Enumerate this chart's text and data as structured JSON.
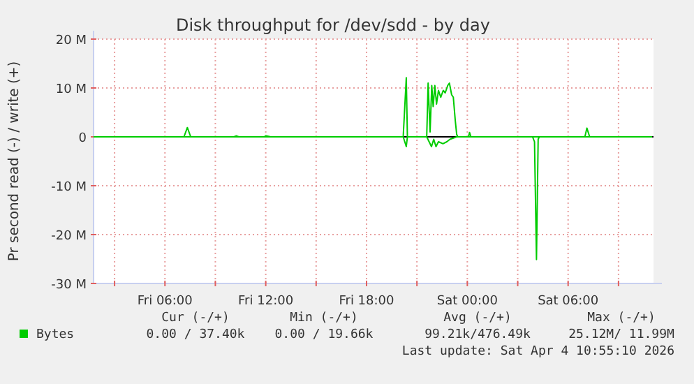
{
  "chart_data": {
    "type": "line",
    "title": "Disk throughput for /dev/sdd - by day",
    "ylabel": "Pr second read (-) / write (+)",
    "xlim": [
      "2026-04-03T01:45",
      "2026-04-04T11:05"
    ],
    "xticks": [
      {
        "value": "2026-04-03T03:00",
        "label": null
      },
      {
        "value": "2026-04-03T06:00",
        "label": "Fri 06:00"
      },
      {
        "value": "2026-04-03T09:00",
        "label": null
      },
      {
        "value": "2026-04-03T12:00",
        "label": "Fri 12:00"
      },
      {
        "value": "2026-04-03T15:00",
        "label": null
      },
      {
        "value": "2026-04-03T18:00",
        "label": "Fri 18:00"
      },
      {
        "value": "2026-04-03T21:00",
        "label": null
      },
      {
        "value": "2026-04-04T00:00",
        "label": "Sat 00:00"
      },
      {
        "value": "2026-04-04T03:00",
        "label": null
      },
      {
        "value": "2026-04-04T06:00",
        "label": "Sat 06:00"
      },
      {
        "value": "2026-04-04T09:00",
        "label": null
      }
    ],
    "ylim": [
      -30,
      20
    ],
    "yticks": [
      {
        "value": -30,
        "label": "-30 M"
      },
      {
        "value": -20,
        "label": "-20 M"
      },
      {
        "value": -10,
        "label": "-10 M"
      },
      {
        "value": 0,
        "label": "0"
      },
      {
        "value": 10,
        "label": "10 M"
      },
      {
        "value": 20,
        "label": "20 M"
      }
    ],
    "grid": true,
    "legend": "bottom",
    "line_style": "solid",
    "ref_lines": [
      {
        "axis": "y",
        "value": 0,
        "color": "#000000"
      }
    ],
    "series": [
      {
        "name": "Bytes",
        "color": "#00cc00",
        "x": [
          "2026-04-03T01:45",
          "2026-04-03T07:08",
          "2026-04-03T07:20",
          "2026-04-03T07:32",
          "2026-04-03T10:06",
          "2026-04-03T10:15",
          "2026-04-03T10:24",
          "2026-04-03T11:54",
          "2026-04-03T12:00",
          "2026-04-03T12:18",
          "2026-04-03T20:11",
          "2026-04-03T20:22",
          "2026-04-03T20:26",
          "2026-04-03T21:35",
          "2026-04-03T21:40",
          "2026-04-03T21:47",
          "2026-04-03T21:53",
          "2026-04-03T21:58",
          "2026-04-03T22:04",
          "2026-04-03T22:10",
          "2026-04-03T22:17",
          "2026-04-03T22:25",
          "2026-04-03T22:34",
          "2026-04-03T22:41",
          "2026-04-03T22:50",
          "2026-04-03T22:56",
          "2026-04-03T23:04",
          "2026-04-03T23:10",
          "2026-04-03T23:17",
          "2026-04-03T23:22",
          "2026-04-03T23:26",
          "2026-04-04T00:04",
          "2026-04-04T00:08",
          "2026-04-04T00:13",
          "2026-04-04T07:00",
          "2026-04-04T07:07",
          "2026-04-04T07:17",
          "2026-04-04T11:00"
        ],
        "values": [
          0,
          0,
          1.9,
          0,
          0,
          0.2,
          0,
          0,
          0.2,
          0,
          0,
          12.1,
          0,
          0,
          11,
          1,
          10.5,
          6.2,
          10.5,
          6.7,
          9.5,
          8.1,
          9.5,
          9,
          10.5,
          11,
          8.6,
          8.1,
          3.3,
          0.5,
          0,
          0,
          0.9,
          0,
          0,
          1.8,
          0,
          0
        ]
      },
      {
        "color": "#00cc00",
        "x": [
          "2026-04-03T01:45",
          "2026-04-03T20:11",
          "2026-04-03T20:22",
          "2026-04-03T20:26",
          "2026-04-03T21:35",
          "2026-04-03T21:52",
          "2026-04-03T22:00",
          "2026-04-03T22:08",
          "2026-04-03T22:17",
          "2026-04-03T22:33",
          "2026-04-03T22:47",
          "2026-04-03T22:58",
          "2026-04-03T23:22",
          "2026-04-04T03:53",
          "2026-04-04T04:00",
          "2026-04-04T04:07",
          "2026-04-04T04:13",
          "2026-04-04T04:17",
          "2026-04-04T11:00"
        ],
        "values": [
          0,
          0,
          -2,
          0,
          0,
          -2,
          -0.5,
          -2,
          -1,
          -1.4,
          -1,
          -0.5,
          0,
          0,
          -1,
          -25.1,
          -0.5,
          0,
          0
        ]
      }
    ],
    "annotations": [
      "Cur (-/+)",
      "Min (-/+)",
      "Avg (-/+)",
      "Max (-/+)",
      "0.00 / 37.40k",
      "0.00 / 19.66k",
      "99.21k/476.49k",
      "25.12M/ 11.99M",
      "Last update: Sat Apr  4 10:55:10 2026"
    ]
  }
}
